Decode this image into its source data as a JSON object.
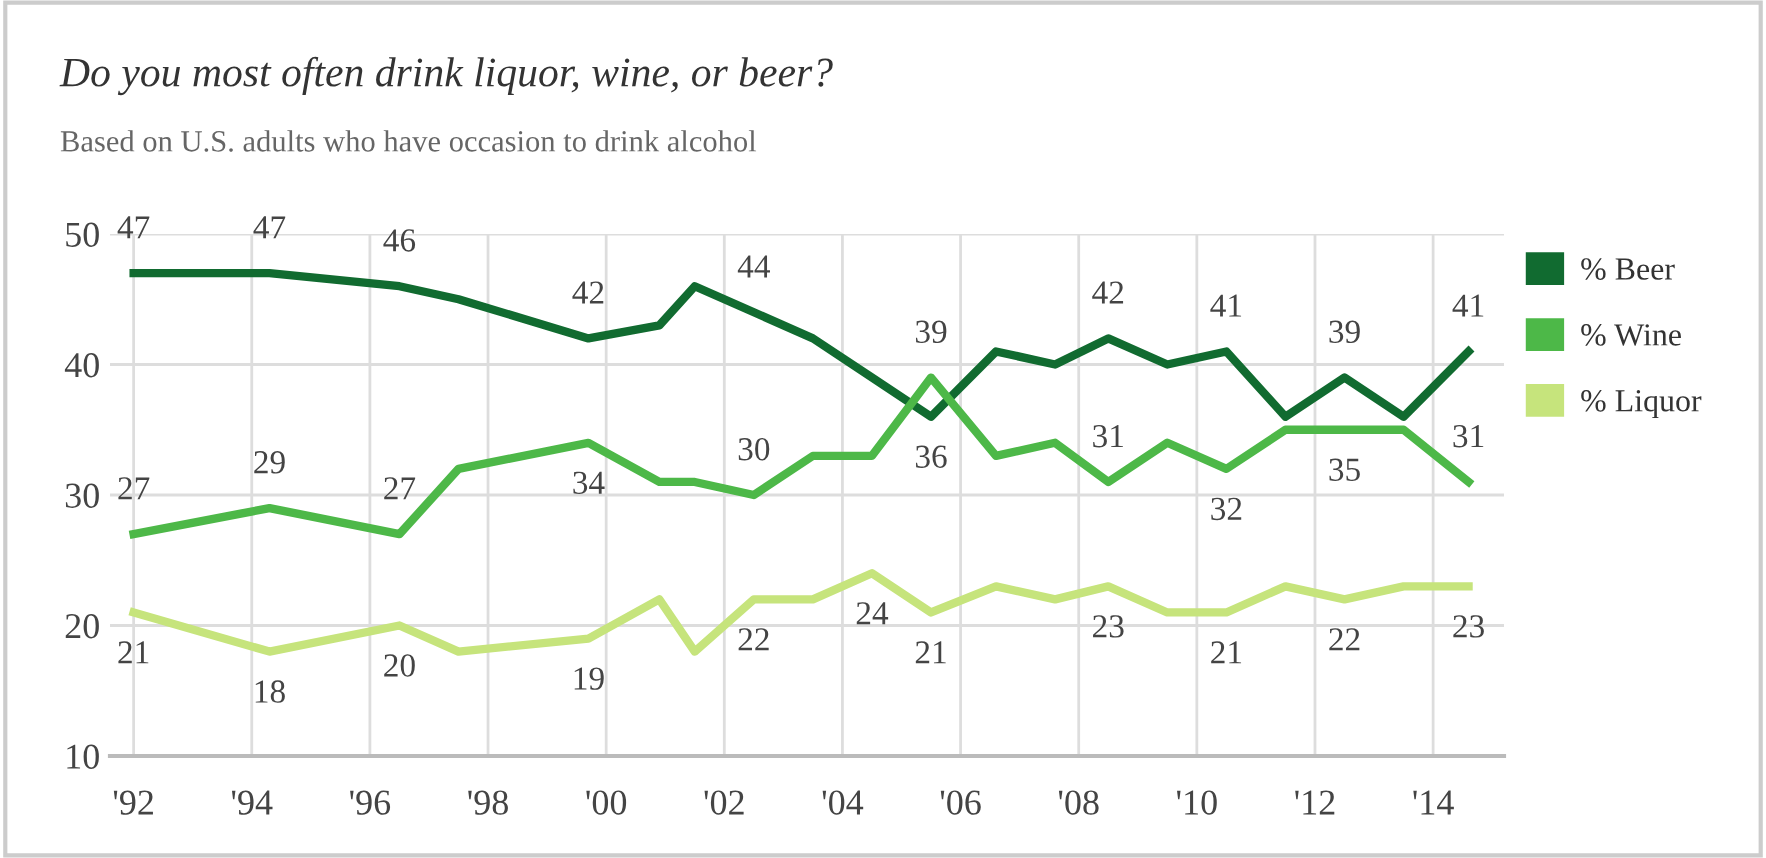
{
  "chart_data": {
    "type": "line",
    "title": "Do you most often drink liquor, wine, or beer?",
    "subtitle": "Based on U.S. adults who have occasion to drink alcohol",
    "x": [
      1992.0,
      1994.3,
      1996.5,
      1997.5,
      1999.7,
      2000.9,
      2001.5,
      2002.5,
      2003.5,
      2004.5,
      2005.5,
      2006.6,
      2007.6,
      2008.5,
      2009.5,
      2010.5,
      2011.5,
      2012.5,
      2013.5,
      2014.6
    ],
    "series": [
      {
        "name": "% Beer",
        "color": "#116b30",
        "values": [
          47,
          47,
          46,
          45,
          42,
          43,
          46,
          44,
          42,
          39,
          36,
          41,
          40,
          42,
          40,
          41,
          36,
          39,
          36,
          41
        ],
        "value_labels": [
          "47",
          "47",
          "46",
          null,
          "42",
          null,
          null,
          "44",
          null,
          null,
          "36",
          null,
          null,
          "42",
          null,
          "41",
          null,
          "39",
          null,
          "41"
        ]
      },
      {
        "name": "% Wine",
        "color": "#4db848",
        "values": [
          27,
          29,
          27,
          32,
          34,
          31,
          31,
          30,
          33,
          33,
          39,
          33,
          34,
          31,
          34,
          32,
          35,
          35,
          35,
          31
        ],
        "value_labels": [
          "27",
          "29",
          "27",
          null,
          "34",
          null,
          null,
          "30",
          null,
          null,
          "39",
          null,
          null,
          "31",
          null,
          "32",
          null,
          "35",
          null,
          "31"
        ]
      },
      {
        "name": "% Liquor",
        "color": "#c6e47c",
        "values": [
          21,
          18,
          20,
          18,
          19,
          22,
          18,
          22,
          22,
          24,
          21,
          23,
          22,
          23,
          21,
          21,
          23,
          22,
          23,
          23
        ],
        "value_labels": [
          "21",
          "18",
          "20",
          null,
          "19",
          null,
          null,
          "22",
          null,
          "24",
          "21",
          null,
          null,
          "23",
          null,
          "21",
          null,
          "22",
          null,
          "23"
        ]
      }
    ],
    "xlim": [
      1991.6,
      2015.2
    ],
    "xticks": [
      {
        "value": 1992,
        "label": "'92"
      },
      {
        "value": 1994,
        "label": "'94"
      },
      {
        "value": 1996,
        "label": "'96"
      },
      {
        "value": 1998,
        "label": "'98"
      },
      {
        "value": 2000,
        "label": "'00"
      },
      {
        "value": 2002,
        "label": "'02"
      },
      {
        "value": 2004,
        "label": "'04"
      },
      {
        "value": 2006,
        "label": "'06"
      },
      {
        "value": 2008,
        "label": "'08"
      },
      {
        "value": 2010,
        "label": "'10"
      },
      {
        "value": 2012,
        "label": "'12"
      },
      {
        "value": 2014,
        "label": "'14"
      }
    ],
    "ylim": [
      10,
      50
    ],
    "yticks": [
      10,
      20,
      30,
      40,
      50
    ],
    "grid": true,
    "legend": "right",
    "marker": "none",
    "line_style": "solid"
  }
}
